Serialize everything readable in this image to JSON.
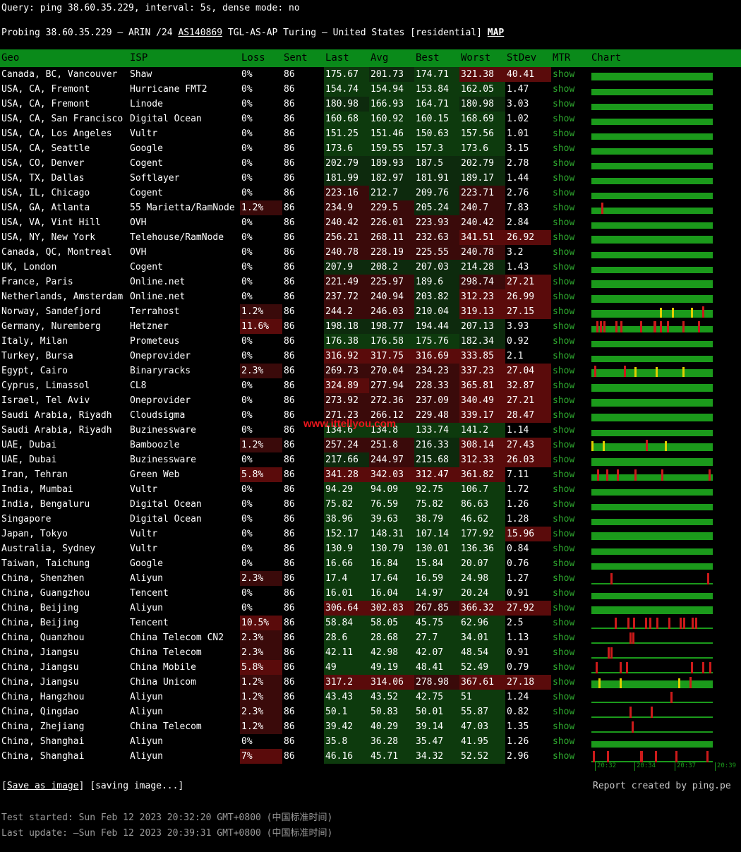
{
  "header": {
    "query_line": "Query: ping 38.60.35.229, interval: 5s, dense mode: no",
    "probe_prefix": "Probing 38.60.35.229 — ARIN /24 ",
    "asn": "AS140869",
    "probe_suffix": " TGL-AS-AP Turing — United States [residential] ",
    "map_label": "MAP"
  },
  "columns": [
    "Geo",
    "ISP",
    "Loss",
    "Sent",
    "Last",
    "Avg",
    "Best",
    "Worst",
    "StDev",
    "MTR",
    "Chart"
  ],
  "mtr_label": "show",
  "rows": [
    {
      "geo": "Canada, BC, Vancouver",
      "isp": "Shaw",
      "loss": "0%",
      "sent": "86",
      "last": "175.67",
      "avg": "201.73",
      "best": "174.71",
      "worst": "321.38",
      "stdev": "40.41"
    },
    {
      "geo": "USA, CA, Fremont",
      "isp": "Hurricane FMT2",
      "loss": "0%",
      "sent": "86",
      "last": "154.74",
      "avg": "154.94",
      "best": "153.84",
      "worst": "162.05",
      "stdev": "1.47"
    },
    {
      "geo": "USA, CA, Fremont",
      "isp": "Linode",
      "loss": "0%",
      "sent": "86",
      "last": "180.98",
      "avg": "166.93",
      "best": "164.71",
      "worst": "180.98",
      "stdev": "3.03"
    },
    {
      "geo": "USA, CA, San Francisco",
      "isp": "Digital Ocean",
      "loss": "0%",
      "sent": "86",
      "last": "160.68",
      "avg": "160.92",
      "best": "160.15",
      "worst": "168.69",
      "stdev": "1.02"
    },
    {
      "geo": "USA, CA, Los Angeles",
      "isp": "Vultr",
      "loss": "0%",
      "sent": "86",
      "last": "151.25",
      "avg": "151.46",
      "best": "150.63",
      "worst": "157.56",
      "stdev": "1.01"
    },
    {
      "geo": "USA, CA, Seattle",
      "isp": "Google",
      "loss": "0%",
      "sent": "86",
      "last": "173.6",
      "avg": "159.55",
      "best": "157.3",
      "worst": "173.6",
      "stdev": "3.15"
    },
    {
      "geo": "USA, CO, Denver",
      "isp": "Cogent",
      "loss": "0%",
      "sent": "86",
      "last": "202.79",
      "avg": "189.93",
      "best": "187.5",
      "worst": "202.79",
      "stdev": "2.78"
    },
    {
      "geo": "USA, TX, Dallas",
      "isp": "Softlayer",
      "loss": "0%",
      "sent": "86",
      "last": "181.99",
      "avg": "182.97",
      "best": "181.91",
      "worst": "189.17",
      "stdev": "1.44"
    },
    {
      "geo": "USA, IL, Chicago",
      "isp": "Cogent",
      "loss": "0%",
      "sent": "86",
      "last": "223.16",
      "avg": "212.7",
      "best": "209.76",
      "worst": "223.71",
      "stdev": "2.76"
    },
    {
      "geo": "USA, GA, Atlanta",
      "isp": "55 Marietta/RamNode",
      "loss": "1.2%",
      "sent": "86",
      "last": "234.9",
      "avg": "229.5",
      "best": "205.24",
      "worst": "240.7",
      "stdev": "7.83"
    },
    {
      "geo": "USA, VA, Vint Hill",
      "isp": "OVH",
      "loss": "0%",
      "sent": "86",
      "last": "240.42",
      "avg": "226.01",
      "best": "223.93",
      "worst": "240.42",
      "stdev": "2.84"
    },
    {
      "geo": "USA, NY, New York",
      "isp": "Telehouse/RamNode",
      "loss": "0%",
      "sent": "86",
      "last": "256.21",
      "avg": "268.11",
      "best": "232.63",
      "worst": "341.51",
      "stdev": "26.92"
    },
    {
      "geo": "Canada, QC, Montreal",
      "isp": "OVH",
      "loss": "0%",
      "sent": "86",
      "last": "240.78",
      "avg": "228.19",
      "best": "225.55",
      "worst": "240.78",
      "stdev": "3.2"
    },
    {
      "geo": "UK, London",
      "isp": "Cogent",
      "loss": "0%",
      "sent": "86",
      "last": "207.9",
      "avg": "208.2",
      "best": "207.03",
      "worst": "214.28",
      "stdev": "1.43"
    },
    {
      "geo": "France, Paris",
      "isp": "Online.net",
      "loss": "0%",
      "sent": "86",
      "last": "221.49",
      "avg": "225.97",
      "best": "189.6",
      "worst": "298.74",
      "stdev": "27.21"
    },
    {
      "geo": "Netherlands, Amsterdam",
      "isp": "Online.net",
      "loss": "0%",
      "sent": "86",
      "last": "237.72",
      "avg": "240.94",
      "best": "203.82",
      "worst": "312.23",
      "stdev": "26.99"
    },
    {
      "geo": "Norway, Sandefjord",
      "isp": "Terrahost",
      "loss": "1.2%",
      "sent": "86",
      "last": "244.2",
      "avg": "246.03",
      "best": "210.04",
      "worst": "319.13",
      "stdev": "27.15"
    },
    {
      "geo": "Germany, Nuremberg",
      "isp": "Hetzner",
      "loss": "11.6%",
      "sent": "86",
      "last": "198.18",
      "avg": "198.77",
      "best": "194.44",
      "worst": "207.13",
      "stdev": "3.93"
    },
    {
      "geo": "Italy, Milan",
      "isp": "Prometeus",
      "loss": "0%",
      "sent": "86",
      "last": "176.38",
      "avg": "176.58",
      "best": "175.76",
      "worst": "182.34",
      "stdev": "0.92"
    },
    {
      "geo": "Turkey, Bursa",
      "isp": "Oneprovider",
      "loss": "0%",
      "sent": "86",
      "last": "316.92",
      "avg": "317.75",
      "best": "316.69",
      "worst": "333.85",
      "stdev": "2.1"
    },
    {
      "geo": "Egypt, Cairo",
      "isp": "Binaryracks",
      "loss": "2.3%",
      "sent": "86",
      "last": "269.73",
      "avg": "270.04",
      "best": "234.23",
      "worst": "337.23",
      "stdev": "27.04"
    },
    {
      "geo": "Cyprus, Limassol",
      "isp": "CL8",
      "loss": "0%",
      "sent": "86",
      "last": "324.89",
      "avg": "277.94",
      "best": "228.33",
      "worst": "365.81",
      "stdev": "32.87"
    },
    {
      "geo": "Israel, Tel Aviv",
      "isp": "Oneprovider",
      "loss": "0%",
      "sent": "86",
      "last": "273.92",
      "avg": "272.36",
      "best": "237.09",
      "worst": "340.49",
      "stdev": "27.21"
    },
    {
      "geo": "Saudi Arabia, Riyadh",
      "isp": "Cloudsigma",
      "loss": "0%",
      "sent": "86",
      "last": "271.23",
      "avg": "266.12",
      "best": "229.48",
      "worst": "339.17",
      "stdev": "28.47"
    },
    {
      "geo": "Saudi Arabia, Riyadh",
      "isp": "Buzinessware",
      "loss": "0%",
      "sent": "86",
      "last": "134.6",
      "avg": "134.8",
      "best": "133.74",
      "worst": "141.2",
      "stdev": "1.14"
    },
    {
      "geo": "UAE, Dubai",
      "isp": "Bamboozle",
      "loss": "1.2%",
      "sent": "86",
      "last": "257.24",
      "avg": "251.8",
      "best": "216.33",
      "worst": "308.14",
      "stdev": "27.43"
    },
    {
      "geo": "UAE, Dubai",
      "isp": "Buzinessware",
      "loss": "0%",
      "sent": "86",
      "last": "217.66",
      "avg": "244.97",
      "best": "215.68",
      "worst": "312.33",
      "stdev": "26.03"
    },
    {
      "geo": "Iran, Tehran",
      "isp": "Green Web",
      "loss": "5.8%",
      "sent": "86",
      "last": "341.28",
      "avg": "342.03",
      "best": "312.47",
      "worst": "361.82",
      "stdev": "7.11"
    },
    {
      "geo": "India, Mumbai",
      "isp": "Vultr",
      "loss": "0%",
      "sent": "86",
      "last": "94.29",
      "avg": "94.09",
      "best": "92.75",
      "worst": "106.7",
      "stdev": "1.72"
    },
    {
      "geo": "India, Bengaluru",
      "isp": "Digital Ocean",
      "loss": "0%",
      "sent": "86",
      "last": "75.82",
      "avg": "76.59",
      "best": "75.82",
      "worst": "86.63",
      "stdev": "1.26"
    },
    {
      "geo": "Singapore",
      "isp": "Digital Ocean",
      "loss": "0%",
      "sent": "86",
      "last": "38.96",
      "avg": "39.63",
      "best": "38.79",
      "worst": "46.62",
      "stdev": "1.28"
    },
    {
      "geo": "Japan, Tokyo",
      "isp": "Vultr",
      "loss": "0%",
      "sent": "86",
      "last": "152.17",
      "avg": "148.31",
      "best": "107.14",
      "worst": "177.92",
      "stdev": "15.96"
    },
    {
      "geo": "Australia, Sydney",
      "isp": "Vultr",
      "loss": "0%",
      "sent": "86",
      "last": "130.9",
      "avg": "130.79",
      "best": "130.01",
      "worst": "136.36",
      "stdev": "0.84"
    },
    {
      "geo": "Taiwan, Taichung",
      "isp": "Google",
      "loss": "0%",
      "sent": "86",
      "last": "16.66",
      "avg": "16.84",
      "best": "15.84",
      "worst": "20.07",
      "stdev": "0.76"
    },
    {
      "geo": "China, Shenzhen",
      "isp": "Aliyun",
      "loss": "2.3%",
      "sent": "86",
      "last": "17.4",
      "avg": "17.64",
      "best": "16.59",
      "worst": "24.98",
      "stdev": "1.27"
    },
    {
      "geo": "China, Guangzhou",
      "isp": "Tencent",
      "loss": "0%",
      "sent": "86",
      "last": "16.01",
      "avg": "16.04",
      "best": "14.97",
      "worst": "20.24",
      "stdev": "0.91"
    },
    {
      "geo": "China, Beijing",
      "isp": "Aliyun",
      "loss": "0%",
      "sent": "86",
      "last": "306.64",
      "avg": "302.83",
      "best": "267.85",
      "worst": "366.32",
      "stdev": "27.92"
    },
    {
      "geo": "China, Beijing",
      "isp": "Tencent",
      "loss": "10.5%",
      "sent": "86",
      "last": "58.84",
      "avg": "58.05",
      "best": "45.75",
      "worst": "62.96",
      "stdev": "2.5"
    },
    {
      "geo": "China, Quanzhou",
      "isp": "China Telecom CN2",
      "loss": "2.3%",
      "sent": "86",
      "last": "28.6",
      "avg": "28.68",
      "best": "27.7",
      "worst": "34.01",
      "stdev": "1.13"
    },
    {
      "geo": "China, Jiangsu",
      "isp": "China Telecom",
      "loss": "2.3%",
      "sent": "86",
      "last": "42.11",
      "avg": "42.98",
      "best": "42.07",
      "worst": "48.54",
      "stdev": "0.91"
    },
    {
      "geo": "China, Jiangsu",
      "isp": "China Mobile",
      "loss": "5.8%",
      "sent": "86",
      "last": "49",
      "avg": "49.19",
      "best": "48.41",
      "worst": "52.49",
      "stdev": "0.79"
    },
    {
      "geo": "China, Jiangsu",
      "isp": "China Unicom",
      "loss": "1.2%",
      "sent": "86",
      "last": "317.2",
      "avg": "314.06",
      "best": "278.98",
      "worst": "367.61",
      "stdev": "27.18"
    },
    {
      "geo": "China, Hangzhou",
      "isp": "Aliyun",
      "loss": "1.2%",
      "sent": "86",
      "last": "43.43",
      "avg": "43.52",
      "best": "42.75",
      "worst": "51",
      "stdev": "1.24"
    },
    {
      "geo": "China, Qingdao",
      "isp": "Aliyun",
      "loss": "2.3%",
      "sent": "86",
      "last": "50.1",
      "avg": "50.83",
      "best": "50.01",
      "worst": "55.87",
      "stdev": "0.82"
    },
    {
      "geo": "China, Zhejiang",
      "isp": "China Telecom",
      "loss": "1.2%",
      "sent": "86",
      "last": "39.42",
      "avg": "40.29",
      "best": "39.14",
      "worst": "47.03",
      "stdev": "1.35"
    },
    {
      "geo": "China, Shanghai",
      "isp": "Aliyun",
      "loss": "0%",
      "sent": "86",
      "last": "35.8",
      "avg": "36.28",
      "best": "35.47",
      "worst": "41.95",
      "stdev": "1.26"
    },
    {
      "geo": "China, Shanghai",
      "isp": "Aliyun",
      "loss": "7%",
      "sent": "86",
      "last": "46.16",
      "avg": "45.71",
      "best": "34.32",
      "worst": "52.52",
      "stdev": "2.96"
    }
  ],
  "chart_axis": [
    "20:32",
    "20:34",
    "20:37",
    "20:39"
  ],
  "watermark": "www.ittellyou.com",
  "footer": {
    "save_link": "Save as image",
    "saving_status": "saving image...",
    "credit": "Report created by ping.pe",
    "test_started": "Test started: Sun Feb 12 2023 20:32:20 GMT+0800 (中国标准时间)",
    "last_update": "Last update: —Sun Feb 12 2023 20:39:31 GMT+0800 (中国标准时间)"
  },
  "colors": {
    "header_green": "#0a8a1a",
    "ok_green": "#0d3a0d",
    "mid_green": "#0d2a0d",
    "bad_red": "#5a0b0b",
    "dark_red": "#3a0a0a",
    "mtr_link": "#2ea82e",
    "chart_green": "#1b9a1b",
    "spike_red": "#cc1a1a",
    "spike_yellow": "#e0d000"
  }
}
